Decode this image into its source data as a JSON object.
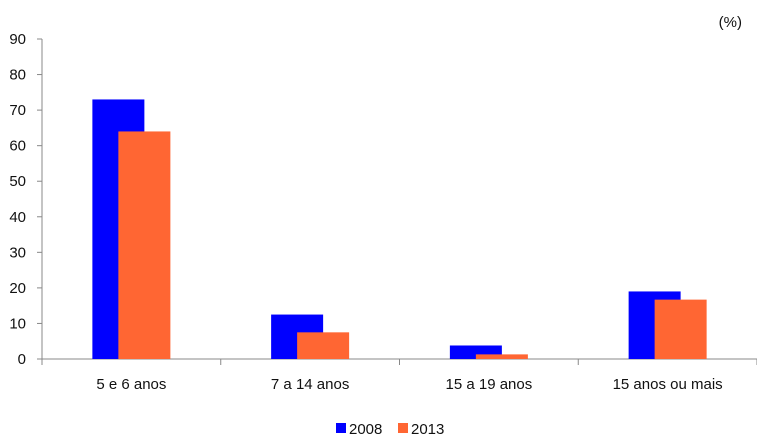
{
  "chart_data": {
    "type": "bar",
    "unit_label": "(%)",
    "categories": [
      "5 e 6 anos",
      "7 a 14 anos",
      "15 a 19 anos",
      "15 anos ou mais"
    ],
    "series": [
      {
        "name": "2008",
        "color": "#0000FF",
        "values": [
          73,
          12.5,
          3.8,
          19
        ]
      },
      {
        "name": "2013",
        "color": "#FF6633",
        "values": [
          64,
          7.5,
          1.3,
          16.7
        ]
      }
    ],
    "yticks": [
      0,
      10,
      20,
      30,
      40,
      50,
      60,
      70,
      80,
      90
    ],
    "ylim": [
      0,
      90
    ],
    "grid": false,
    "legend_position": "bottom-center"
  }
}
